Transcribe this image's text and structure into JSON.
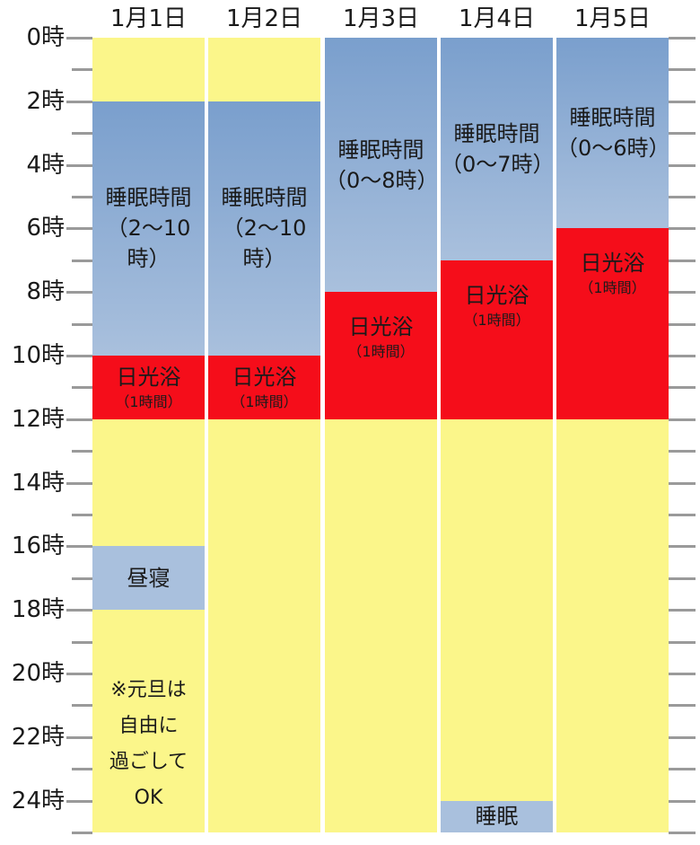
{
  "days": [
    "1月1日",
    "1月2日",
    "1月3日",
    "1月4日",
    "1月5日"
  ],
  "hour_labels": [
    "0時",
    "2時",
    "4時",
    "6時",
    "8時",
    "10時",
    "12時",
    "14時",
    "16時",
    "18時",
    "20時",
    "22時",
    "24時"
  ],
  "sleep_label": "睡眠時間",
  "sun_label": "日光浴",
  "sun_duration": "（1時間）",
  "schedule": [
    {
      "day": "1月1日",
      "blocks": [
        {
          "start": 0,
          "end": 2,
          "kind": "free"
        },
        {
          "start": 2,
          "end": 10,
          "kind": "sleep",
          "label": "睡眠時間",
          "sub": "（2〜10時）"
        },
        {
          "start": 10,
          "end": 12,
          "kind": "sun",
          "label": "日光浴",
          "sub": "（1時間）"
        },
        {
          "start": 12,
          "end": 16,
          "kind": "free"
        },
        {
          "start": 16,
          "end": 18,
          "kind": "nap",
          "label": "昼寝"
        },
        {
          "start": 18,
          "end": 25,
          "kind": "free",
          "note": [
            "※元旦は",
            "自由に",
            "過ごして",
            "OK"
          ]
        }
      ]
    },
    {
      "day": "1月2日",
      "blocks": [
        {
          "start": 0,
          "end": 2,
          "kind": "free"
        },
        {
          "start": 2,
          "end": 10,
          "kind": "sleep",
          "label": "睡眠時間",
          "sub": "（2〜10時）"
        },
        {
          "start": 10,
          "end": 12,
          "kind": "sun",
          "label": "日光浴",
          "sub": "（1時間）"
        },
        {
          "start": 12,
          "end": 25,
          "kind": "free"
        }
      ]
    },
    {
      "day": "1月3日",
      "blocks": [
        {
          "start": 0,
          "end": 8,
          "kind": "sleep",
          "label": "睡眠時間",
          "sub": "（0〜8時）"
        },
        {
          "start": 8,
          "end": 12,
          "kind": "sun",
          "label": "日光浴",
          "sub": "（1時間）"
        },
        {
          "start": 12,
          "end": 25,
          "kind": "free"
        }
      ]
    },
    {
      "day": "1月4日",
      "blocks": [
        {
          "start": 0,
          "end": 7,
          "kind": "sleep",
          "label": "睡眠時間",
          "sub": "（0〜7時）"
        },
        {
          "start": 7,
          "end": 12,
          "kind": "sun",
          "label": "日光浴",
          "sub": "（1時間）"
        },
        {
          "start": 12,
          "end": 24,
          "kind": "free"
        },
        {
          "start": 24,
          "end": 25,
          "kind": "nap",
          "label": "睡眠"
        }
      ]
    },
    {
      "day": "1月5日",
      "blocks": [
        {
          "start": 0,
          "end": 6,
          "kind": "sleep",
          "label": "睡眠時間",
          "sub": "（0〜6時）"
        },
        {
          "start": 6,
          "end": 12,
          "kind": "sun",
          "label": "日光浴",
          "sub": "（1時間）"
        },
        {
          "start": 12,
          "end": 25,
          "kind": "free"
        }
      ]
    }
  ],
  "colors": {
    "free": "#fbf68a",
    "sleep_top": "#7a9fcd",
    "sleep_bottom": "#a9c0dd",
    "nap": "#a9c0dd",
    "sun": "#f50d1a",
    "tick": "#9a9a9a"
  }
}
